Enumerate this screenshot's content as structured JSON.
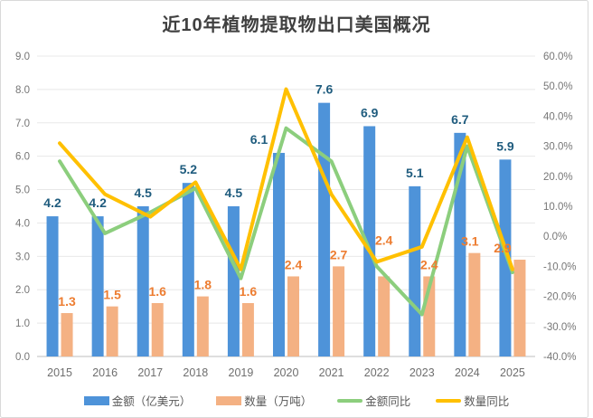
{
  "title": "近10年植物提取物出口美国概况",
  "chart_data": {
    "type": "bar+line",
    "categories": [
      "2015",
      "2016",
      "2017",
      "2018",
      "2019",
      "2020",
      "2021",
      "2022",
      "2023",
      "2024",
      "2025"
    ],
    "series": [
      {
        "id": "amount",
        "name": "金额（亿美元）",
        "type": "bar",
        "axis": "left",
        "color": "#4E93D9",
        "label_color": "#1F5C7E",
        "values": [
          4.2,
          4.2,
          4.5,
          5.2,
          4.5,
          6.1,
          7.6,
          6.9,
          5.1,
          6.7,
          5.9
        ],
        "value_labels": [
          "4.2",
          "4.2",
          "4.5",
          "5.2",
          "4.5",
          "6.1",
          "7.6",
          "6.9",
          "5.1",
          "6.7",
          "5.9"
        ]
      },
      {
        "id": "quantity",
        "name": "数量（万吨）",
        "type": "bar",
        "axis": "left",
        "color": "#F4B183",
        "label_color": "#ED7D31",
        "values": [
          1.3,
          1.5,
          1.6,
          1.8,
          1.6,
          2.4,
          2.7,
          2.4,
          2.4,
          3.1,
          2.9
        ],
        "value_labels": [
          "1.3",
          "1.5",
          "1.6",
          "1.8",
          "1.6",
          "2.4",
          "2.7",
          "2.4",
          "2.4",
          "3.1",
          "2.9"
        ]
      },
      {
        "id": "amount_yoy",
        "name": "金额同比",
        "type": "line",
        "axis": "right",
        "color": "#8CCE7D",
        "values_pct_estimated": [
          25,
          1,
          8,
          16,
          -14,
          36,
          25,
          -10,
          -26,
          30,
          -12
        ]
      },
      {
        "id": "quantity_yoy",
        "name": "数量同比",
        "type": "line",
        "axis": "right",
        "color": "#FFC000",
        "values_pct_estimated": [
          31,
          14,
          6.5,
          18,
          -11,
          49,
          14,
          -8.5,
          -3.5,
          33,
          -11
        ]
      }
    ],
    "left_axis": {
      "min": 0,
      "max": 9,
      "step": 1,
      "tick_labels": [
        "9.0",
        "8.0",
        "7.0",
        "6.0",
        "5.0",
        "4.0",
        "3.0",
        "2.0",
        "1.0",
        "0.0"
      ]
    },
    "right_axis": {
      "min": -40,
      "max": 60,
      "step": 10,
      "tick_labels": [
        "60.0%",
        "50.0%",
        "40.0%",
        "30.0%",
        "20.0%",
        "10.0%",
        "0.0%",
        "-10.0%",
        "-20.0%",
        "-30.0%",
        "-40.0%"
      ]
    },
    "grid": true,
    "legend_position": "bottom"
  },
  "colors": {
    "background": "#ffffff",
    "gridline": "#E8E8E8",
    "axis_line": "#C9C9C9",
    "border": "#D9D9D9",
    "axis_text": "#767676",
    "year_text": "#6E6E6E",
    "title_text": "#404040",
    "legend_text": "#595959"
  }
}
